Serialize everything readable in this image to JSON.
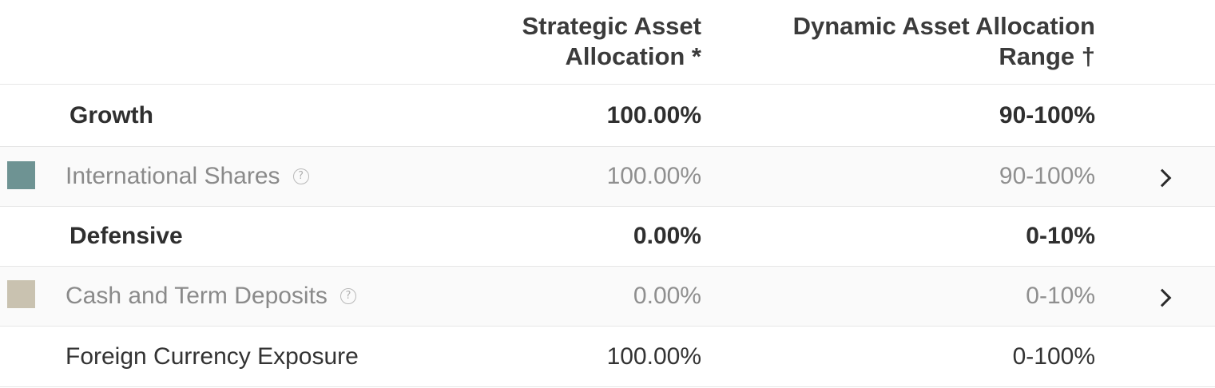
{
  "header": {
    "strategic_line1": "Strategic Asset",
    "strategic_line2": "Allocation *",
    "dynamic_line1": "Dynamic Asset Allocation",
    "dynamic_line2": "Range †"
  },
  "rows": [
    {
      "label": "Growth",
      "strategic": "100.00%",
      "dynamic": "90-100%"
    },
    {
      "label": "International Shares",
      "strategic": "100.00%",
      "dynamic": "90-100%",
      "swatch_color": "#6e9393",
      "help_icon": "question-icon",
      "chevron_icon": "chevron-right-icon"
    },
    {
      "label": "Defensive",
      "strategic": "0.00%",
      "dynamic": "0-10%"
    },
    {
      "label": "Cash and Term Deposits",
      "strategic": "0.00%",
      "dynamic": "0-10%",
      "swatch_color": "#c9c2b0",
      "help_icon": "question-icon",
      "chevron_icon": "chevron-right-icon"
    },
    {
      "label": "Foreign Currency Exposure",
      "strategic": "100.00%",
      "dynamic": "0-100%"
    }
  ],
  "icons": {
    "help_glyph": "?"
  }
}
